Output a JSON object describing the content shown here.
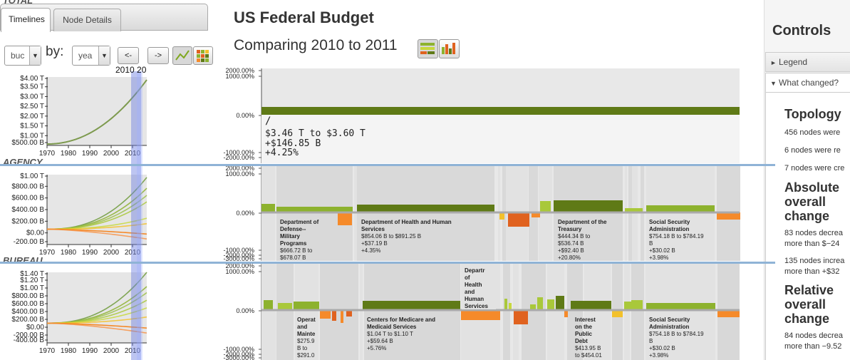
{
  "left": {
    "tabs": {
      "timelines": "Timelines",
      "node_details": "Node Details"
    },
    "group_select": "buc",
    "by_label": "by:",
    "period_select": "yea",
    "prev_label": "<-",
    "next_label": "->",
    "highlight_years": [
      "2010",
      "20"
    ],
    "charts": [
      {
        "label": "TOTAL",
        "yticks": [
          "$4.00 T",
          "$3.50 T",
          "$3.00 T",
          "$2.50 T",
          "$2.00 T",
          "$1.50 T",
          "$1.00 T",
          "$500.00 B"
        ],
        "xticks": [
          "1970",
          "1980",
          "1990",
          "2000",
          "2010"
        ]
      },
      {
        "label": "AGENCY",
        "yticks": [
          "$1.00 T",
          "$800.00 B",
          "$600.00 B",
          "$400.00 B",
          "$200.00 B",
          "$0.00",
          "-200.00 B"
        ],
        "xticks": [
          "1970",
          "1980",
          "1990",
          "2000",
          "2010"
        ]
      },
      {
        "label": "BUREAU",
        "yticks": [
          "$1.40 T",
          "$1.20 T",
          "$1.00 T",
          "$800.00 B",
          "$600.00 B",
          "$400.00 B",
          "$200.00 B",
          "$0.00",
          "-200.00 B",
          "-400.00 B"
        ],
        "xticks": [
          "1970",
          "1980",
          "1990",
          "2000",
          "2010"
        ]
      }
    ]
  },
  "center": {
    "title": "US Federal Budget",
    "subtitle": "Comparing 2010 to 2011",
    "axis": {
      "top": "2000.00%",
      "top2": "1000.00%",
      "zero": "0.00%",
      "bot": "-1000.00%",
      "bot2": "-2000.00%",
      "bot3": "-3000.00%"
    },
    "total": {
      "name": "/",
      "range": "$3.46 T to $3.60 T",
      "delta": "+$146.85 B",
      "pct": "+4.25%"
    },
    "agency": [
      {
        "name": "Department of Defense--Military Programs",
        "range": "$666.72 B to $678.07 B"
      },
      {
        "name": "Department of Health and Human Services",
        "range": "$854.06 B to $891.25 B",
        "delta": "+$37.19 B",
        "pct": "+4.35%"
      },
      {
        "name": "Department of the Treasury",
        "range": "$444.34 B to $536.74 B",
        "delta": "+$92.40 B",
        "pct": "+20.80%"
      },
      {
        "name": "Social Security Administration",
        "range": "$754.18 B to $784.19 B",
        "delta": "+$30.02 B",
        "pct": "+3.98%"
      }
    ],
    "bureau": [
      {
        "name": "Operat and Mainte",
        "range": "$275.9 B to $291.0"
      },
      {
        "name": "Departr of Health and Human Services"
      },
      {
        "name": "Centers for Medicare and Medicaid Services",
        "range": "$1.04 T to $1.10 T",
        "delta": "+$59.64 B",
        "pct": "+5.76%"
      },
      {
        "name": "Interest on the Public Debt",
        "range": "$413.95 B to $454.01"
      },
      {
        "name": "Social Security Administration",
        "range": "$754.18 B to $784.19 B",
        "delta": "+$30.02 B",
        "pct": "+3.98%"
      }
    ]
  },
  "right": {
    "title": "Controls",
    "legend": "Legend",
    "what_changed": "What changed?",
    "topology_h": "Topology",
    "topo1": "456 nodes were",
    "topo2": "6 nodes were re",
    "topo3": "7 nodes were cre",
    "abs_h1": "Absolute",
    "abs_h2": "overall",
    "abs_h3": "change",
    "abs1a": "83 nodes decrea",
    "abs1b": "more than $−24",
    "abs2a": "135 nodes increa",
    "abs2b": "more than +$32",
    "rel_h1": "Relative",
    "rel_h2": "overall",
    "rel_h3": "change",
    "rel1a": "84 nodes decrea",
    "rel1b": "more than −9.52"
  },
  "colors": {
    "dark_green": "#5f7a16",
    "green": "#8db22e",
    "light_green": "#a9c83a",
    "yellow_green": "#c7d83d",
    "orange": "#f58a2a",
    "dark_orange": "#e0621f",
    "yellow": "#f3c12b",
    "band": "#8fb3d6",
    "highlight": "#6d7fe0"
  }
}
